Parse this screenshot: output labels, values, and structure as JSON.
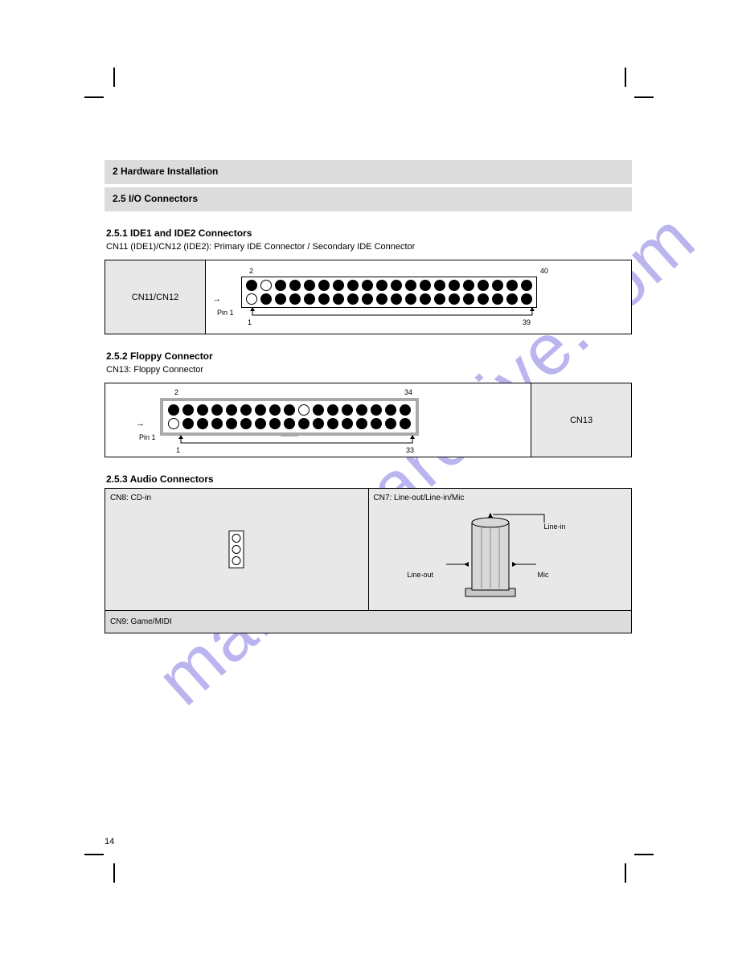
{
  "page_number": "14",
  "watermark_text": "manualsarchive.com",
  "colors": {
    "header_bg": "#dcdcdc",
    "cell_bg": "#e8e8e8",
    "frame_gray": "#aaaaaa",
    "watermark": "#7a6de0"
  },
  "section1": {
    "title": "2 Hardware Installation",
    "subtitle": "2.5 I/O Connectors"
  },
  "ide1": {
    "title": "2.5.1 IDE1 and IDE2 Connectors",
    "desc": "CN11 (IDE1)/CN12 (IDE2): Primary IDE Connector / Secondary IDE Connector",
    "label": "CN11/CN12",
    "open_pins_top": [
      1
    ],
    "open_pins_bottom": [
      0
    ],
    "pin_count": 20,
    "pin1_arrow": "Pin 1",
    "pin_labels": {
      "tl": "2",
      "tr": "40",
      "bl": "1",
      "br": "39"
    }
  },
  "floppy": {
    "title": "2.5.2 Floppy Connector",
    "desc": "CN13: Floppy Connector",
    "label": "CN13",
    "open_pins_top": [
      9
    ],
    "open_pins_bottom": [
      0
    ],
    "pin_count": 17,
    "pin1_arrow": "Pin 1",
    "pin_labels": {
      "tl": "2",
      "tr": "34",
      "bl": "1",
      "br": "33"
    }
  },
  "audio": {
    "title": "2.5.3 Audio Connectors",
    "left_label": "CN8: CD-in",
    "right_label": "CN7: Line-out/Line-in/Mic",
    "right_annot": {
      "top": "Line-in",
      "left": "Line-out",
      "right": "Mic"
    },
    "footer_label": "CN9: Game/MIDI"
  },
  "crop_marks": {
    "positions": [
      "top-left",
      "top-right",
      "bottom-left",
      "bottom-right"
    ]
  }
}
